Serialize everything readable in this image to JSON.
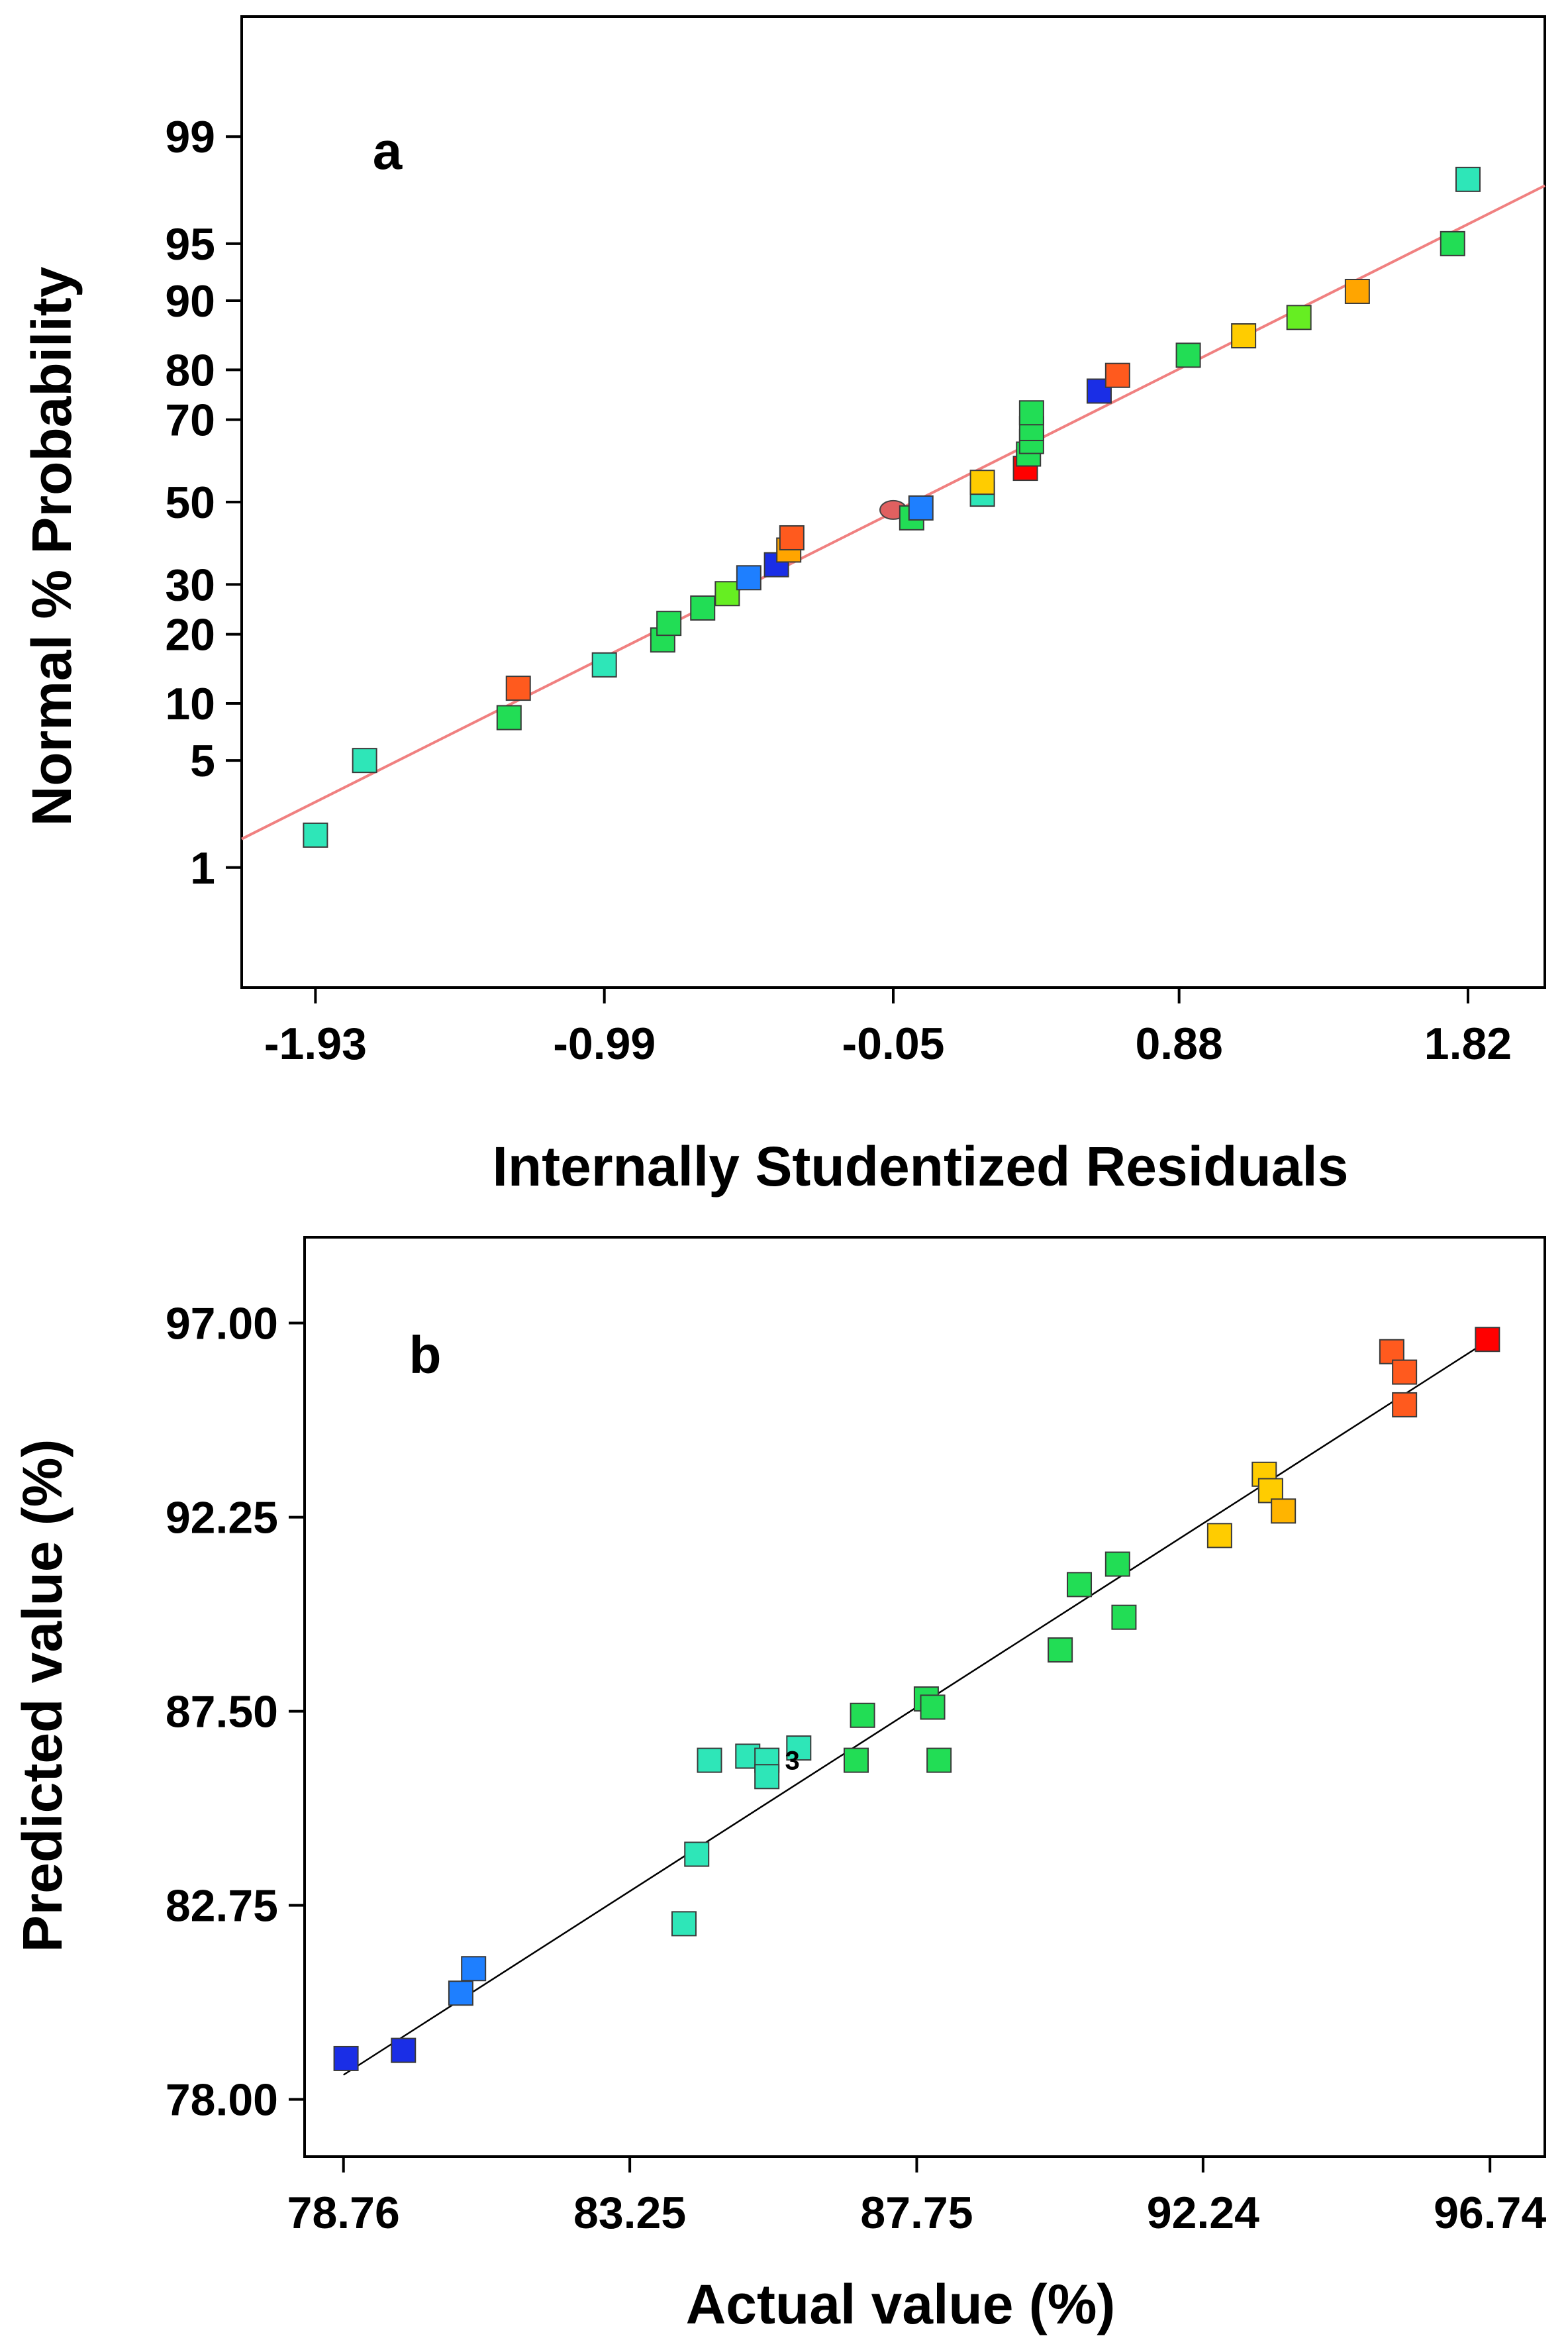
{
  "chart_data": [
    {
      "type": "scatter",
      "panel_label": "a",
      "xlabel": "Internally Studentized Residuals",
      "ylabel": "Normal % Probability",
      "x_ticks": [
        "-1.93",
        "-0.99",
        "-0.05",
        "0.88",
        "1.82"
      ],
      "x_tick_values": [
        -1.93,
        -0.99,
        -0.05,
        0.88,
        1.82
      ],
      "xlim": [
        -2.17,
        2.07
      ],
      "y_scale": "normal-probability",
      "y_ticks": [
        "1",
        "5",
        "10",
        "20",
        "30",
        "50",
        "70",
        "80",
        "90",
        "95",
        "99"
      ],
      "y_tick_values": [
        1,
        5,
        10,
        20,
        30,
        50,
        70,
        80,
        90,
        95,
        99
      ],
      "ylim": [
        0.1,
        99.9
      ],
      "grid": false,
      "fit_line": {
        "x": [
          -2.17,
          2.07
        ],
        "y": [
          1.6,
          97.8
        ],
        "color": "#f08080"
      },
      "points": [
        {
          "x": -1.93,
          "y": 1.7,
          "color": "#2ee6b8"
        },
        {
          "x": -1.77,
          "y": 5.0,
          "color": "#2ee6b8"
        },
        {
          "x": -1.3,
          "y": 8.5,
          "color": "#22dd55"
        },
        {
          "x": -1.27,
          "y": 11.8,
          "color": "#ff5a1e"
        },
        {
          "x": -0.99,
          "y": 15.0,
          "color": "#2ee6b8"
        },
        {
          "x": -0.8,
          "y": 19.0,
          "color": "#22dd55"
        },
        {
          "x": -0.78,
          "y": 22.0,
          "color": "#22dd55"
        },
        {
          "x": -0.67,
          "y": 25.0,
          "color": "#22dd55"
        },
        {
          "x": -0.59,
          "y": 28.0,
          "color": "#66ee22"
        },
        {
          "x": -0.52,
          "y": 31.5,
          "color": "#1e7fff"
        },
        {
          "x": -0.43,
          "y": 34.5,
          "color": "#1a2ee6"
        },
        {
          "x": -0.39,
          "y": 38.0,
          "color": "#ffa500"
        },
        {
          "x": -0.38,
          "y": 41.0,
          "color": "#ff5a1e"
        },
        {
          "x": -0.05,
          "y": 48.0,
          "color": "#ff3a3a",
          "style": "overlap"
        },
        {
          "x": 0.01,
          "y": 46.0,
          "color": "#22dd55"
        },
        {
          "x": 0.04,
          "y": 48.5,
          "color": "#1e7fff"
        },
        {
          "x": 0.24,
          "y": 52.0,
          "color": "#2ee6b8"
        },
        {
          "x": 0.24,
          "y": 55.0,
          "color": "#ffcc00"
        },
        {
          "x": 0.38,
          "y": 58.5,
          "color": "#ff0000"
        },
        {
          "x": 0.39,
          "y": 62.0,
          "color": "#22dd55"
        },
        {
          "x": 0.4,
          "y": 65.0,
          "color": "#22dd55"
        },
        {
          "x": 0.4,
          "y": 68.0,
          "color": "#22dd55"
        },
        {
          "x": 0.4,
          "y": 71.5,
          "color": "#22dd55"
        },
        {
          "x": 0.62,
          "y": 76.0,
          "color": "#1a2ee6"
        },
        {
          "x": 0.68,
          "y": 79.0,
          "color": "#ff5a1e"
        },
        {
          "x": 0.91,
          "y": 82.5,
          "color": "#22dd55"
        },
        {
          "x": 1.09,
          "y": 85.5,
          "color": "#ffcc00"
        },
        {
          "x": 1.27,
          "y": 88.0,
          "color": "#66ee22"
        },
        {
          "x": 1.46,
          "y": 91.0,
          "color": "#ffa500"
        },
        {
          "x": 1.77,
          "y": 95.0,
          "color": "#22dd55"
        },
        {
          "x": 1.82,
          "y": 98.0,
          "color": "#2ee6b8"
        }
      ]
    },
    {
      "type": "scatter",
      "panel_label": "b",
      "xlabel": "Actual value (%)",
      "ylabel": "Predicted value (%)",
      "x_ticks": [
        "78.76",
        "83.25",
        "87.75",
        "92.24",
        "96.74"
      ],
      "x_tick_values": [
        78.76,
        83.25,
        87.75,
        92.24,
        96.74
      ],
      "xlim": [
        78.15,
        97.6
      ],
      "y_ticks": [
        "78.00",
        "82.75",
        "87.50",
        "92.25",
        "97.00"
      ],
      "y_tick_values": [
        78.0,
        82.75,
        87.5,
        92.25,
        97.0
      ],
      "ylim": [
        76.6,
        99.1
      ],
      "grid": false,
      "fit_line": {
        "x": [
          78.76,
          96.74
        ],
        "y": [
          78.6,
          96.6
        ],
        "color": "#000000"
      },
      "annotation": {
        "text": "3",
        "x": 85.8,
        "y": 86.3
      },
      "points": [
        {
          "x": 78.8,
          "y": 79.0,
          "color": "#1a2ee6"
        },
        {
          "x": 79.7,
          "y": 79.2,
          "color": "#1a2ee6"
        },
        {
          "x": 80.6,
          "y": 80.6,
          "color": "#1e7fff"
        },
        {
          "x": 80.8,
          "y": 81.2,
          "color": "#1e7fff"
        },
        {
          "x": 84.1,
          "y": 82.3,
          "color": "#2ee6b8"
        },
        {
          "x": 84.3,
          "y": 84.0,
          "color": "#2ee6b8"
        },
        {
          "x": 84.5,
          "y": 86.3,
          "color": "#2ee6b8"
        },
        {
          "x": 85.1,
          "y": 86.4,
          "color": "#2ee6b8"
        },
        {
          "x": 85.4,
          "y": 86.3,
          "color": "#2ee6b8"
        },
        {
          "x": 85.4,
          "y": 85.9,
          "color": "#2ee6b8"
        },
        {
          "x": 85.9,
          "y": 86.6,
          "color": "#2ee6b8"
        },
        {
          "x": 86.8,
          "y": 86.3,
          "color": "#22dd55"
        },
        {
          "x": 86.9,
          "y": 87.4,
          "color": "#22dd55"
        },
        {
          "x": 87.9,
          "y": 87.8,
          "color": "#22dd55"
        },
        {
          "x": 88.0,
          "y": 87.6,
          "color": "#22dd55"
        },
        {
          "x": 88.1,
          "y": 86.3,
          "color": "#22dd55"
        },
        {
          "x": 90.0,
          "y": 89.0,
          "color": "#22dd55"
        },
        {
          "x": 90.3,
          "y": 90.6,
          "color": "#22dd55"
        },
        {
          "x": 90.9,
          "y": 91.1,
          "color": "#22dd55"
        },
        {
          "x": 91.0,
          "y": 89.8,
          "color": "#22dd55"
        },
        {
          "x": 92.5,
          "y": 91.8,
          "color": "#ffcc00"
        },
        {
          "x": 93.2,
          "y": 93.3,
          "color": "#ffcc00"
        },
        {
          "x": 93.3,
          "y": 92.9,
          "color": "#ffcc00"
        },
        {
          "x": 93.5,
          "y": 92.4,
          "color": "#ffb400"
        },
        {
          "x": 95.2,
          "y": 96.3,
          "color": "#ff5a1e"
        },
        {
          "x": 95.4,
          "y": 95.8,
          "color": "#ff5a1e"
        },
        {
          "x": 95.4,
          "y": 95.0,
          "color": "#ff5a1e"
        },
        {
          "x": 96.7,
          "y": 96.6,
          "color": "#ff0000"
        }
      ]
    }
  ]
}
